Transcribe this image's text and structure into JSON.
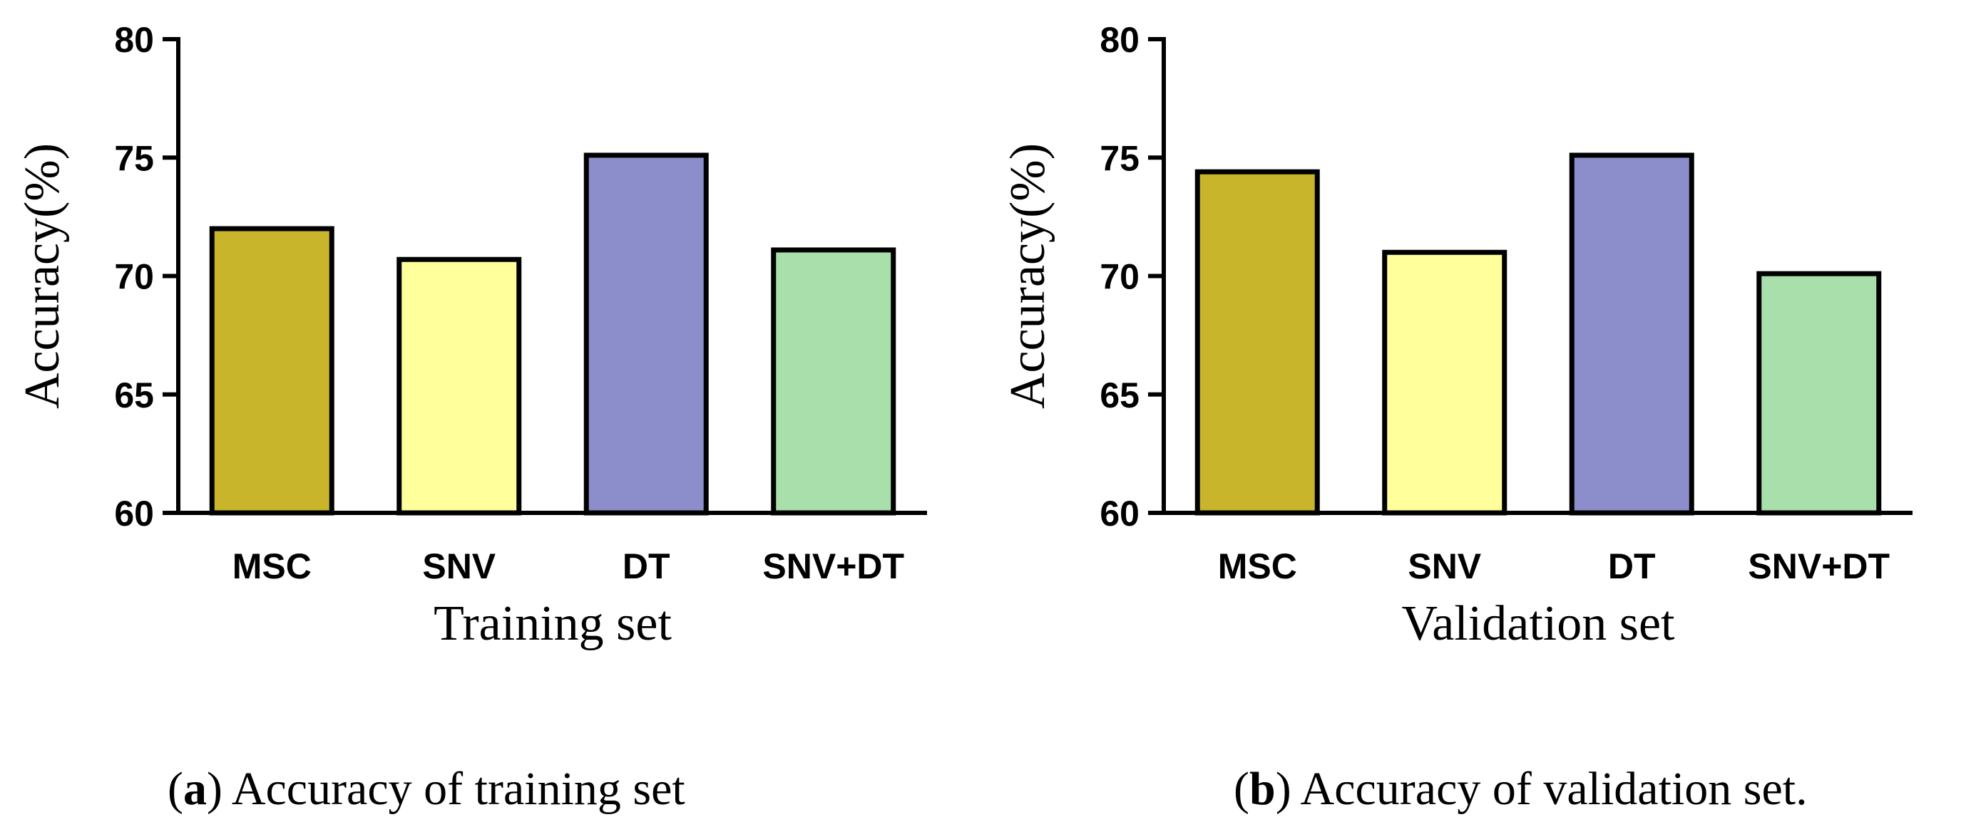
{
  "chart_data": [
    {
      "type": "bar",
      "title": "",
      "categories": [
        "MSC",
        "SNV",
        "DT",
        "SNV+DT"
      ],
      "values": [
        72.0,
        70.7,
        75.1,
        71.1
      ],
      "colors": [
        "#c9b52b",
        "#ffff9c",
        "#8c8ecb",
        "#a8dfab"
      ],
      "xlabel": "Training set",
      "ylabel": "Accuracy(%)",
      "ylim": [
        60,
        80
      ],
      "yticks": [
        "60",
        "65",
        "70",
        "75",
        "80"
      ],
      "grid": false,
      "caption": {
        "letter": "a",
        "text": "Accuracy of training set"
      }
    },
    {
      "type": "bar",
      "title": "",
      "categories": [
        "MSC",
        "SNV",
        "DT",
        "SNV+DT"
      ],
      "values": [
        74.4,
        71.0,
        75.1,
        70.1
      ],
      "colors": [
        "#c9b52b",
        "#ffff9c",
        "#8c8ecb",
        "#a8dfab"
      ],
      "xlabel": "Validation set",
      "ylabel": "Accuracy(%)",
      "ylim": [
        60,
        80
      ],
      "yticks": [
        "60",
        "65",
        "70",
        "75",
        "80"
      ],
      "grid": false,
      "caption": {
        "letter": "b",
        "text": "Accuracy of validation set."
      }
    }
  ]
}
